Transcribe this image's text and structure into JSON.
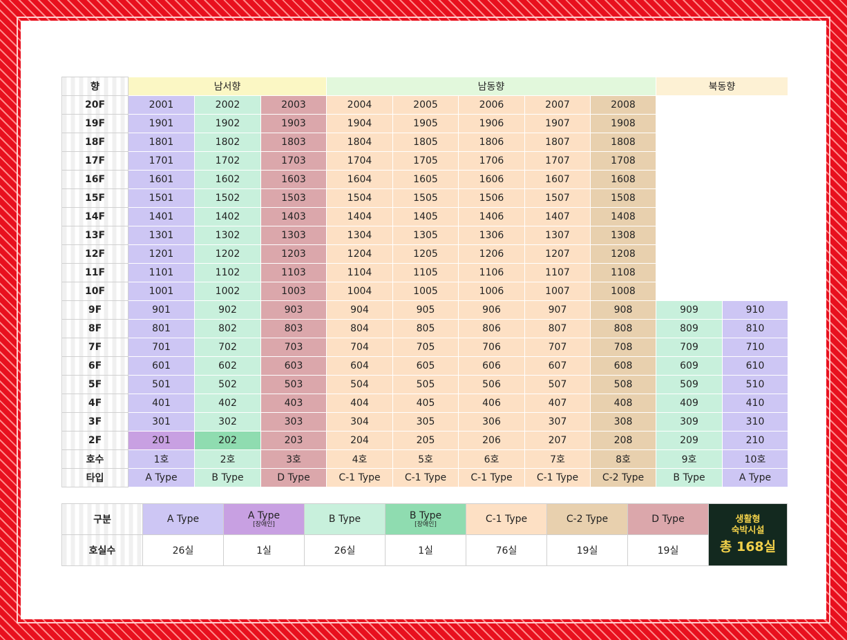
{
  "header_label": "향",
  "orientations": [
    {
      "label": "남서향",
      "span": 3,
      "style": "hSW"
    },
    {
      "label": "남동향",
      "span": 5,
      "style": "hSE"
    },
    {
      "label": "북동향",
      "span": 2,
      "style": "hNE"
    }
  ],
  "floors": [
    {
      "label": "20F",
      "units": [
        "2001",
        "2002",
        "2003",
        "2004",
        "2005",
        "2006",
        "2007",
        "2008"
      ]
    },
    {
      "label": "19F",
      "units": [
        "1901",
        "1902",
        "1903",
        "1904",
        "1905",
        "1906",
        "1907",
        "1908"
      ]
    },
    {
      "label": "18F",
      "units": [
        "1801",
        "1802",
        "1803",
        "1804",
        "1805",
        "1806",
        "1807",
        "1808"
      ]
    },
    {
      "label": "17F",
      "units": [
        "1701",
        "1702",
        "1703",
        "1704",
        "1705",
        "1706",
        "1707",
        "1708"
      ]
    },
    {
      "label": "16F",
      "units": [
        "1601",
        "1602",
        "1603",
        "1604",
        "1605",
        "1606",
        "1607",
        "1608"
      ]
    },
    {
      "label": "15F",
      "units": [
        "1501",
        "1502",
        "1503",
        "1504",
        "1505",
        "1506",
        "1507",
        "1508"
      ]
    },
    {
      "label": "14F",
      "units": [
        "1401",
        "1402",
        "1403",
        "1404",
        "1405",
        "1406",
        "1407",
        "1408"
      ]
    },
    {
      "label": "13F",
      "units": [
        "1301",
        "1302",
        "1303",
        "1304",
        "1305",
        "1306",
        "1307",
        "1308"
      ]
    },
    {
      "label": "12F",
      "units": [
        "1201",
        "1202",
        "1203",
        "1204",
        "1205",
        "1206",
        "1207",
        "1208"
      ]
    },
    {
      "label": "11F",
      "units": [
        "1101",
        "1102",
        "1103",
        "1104",
        "1105",
        "1106",
        "1107",
        "1108"
      ]
    },
    {
      "label": "10F",
      "units": [
        "1001",
        "1002",
        "1003",
        "1004",
        "1005",
        "1006",
        "1007",
        "1008"
      ]
    },
    {
      "label": "9F",
      "units": [
        "901",
        "902",
        "903",
        "904",
        "905",
        "906",
        "907",
        "908",
        "909",
        "910"
      ]
    },
    {
      "label": "8F",
      "units": [
        "801",
        "802",
        "803",
        "804",
        "805",
        "806",
        "807",
        "808",
        "809",
        "810"
      ]
    },
    {
      "label": "7F",
      "units": [
        "701",
        "702",
        "703",
        "704",
        "705",
        "706",
        "707",
        "708",
        "709",
        "710"
      ]
    },
    {
      "label": "6F",
      "units": [
        "601",
        "602",
        "603",
        "604",
        "605",
        "606",
        "607",
        "608",
        "609",
        "610"
      ]
    },
    {
      "label": "5F",
      "units": [
        "501",
        "502",
        "503",
        "504",
        "505",
        "506",
        "507",
        "508",
        "509",
        "510"
      ]
    },
    {
      "label": "4F",
      "units": [
        "401",
        "402",
        "403",
        "404",
        "405",
        "406",
        "407",
        "408",
        "409",
        "410"
      ]
    },
    {
      "label": "3F",
      "units": [
        "301",
        "302",
        "303",
        "304",
        "305",
        "306",
        "307",
        "308",
        "309",
        "310"
      ]
    },
    {
      "label": "2F",
      "units": [
        "201",
        "202",
        "203",
        "204",
        "205",
        "206",
        "207",
        "208",
        "209",
        "210"
      ]
    }
  ],
  "column_styles": [
    "cA",
    "cB",
    "cD",
    "cC1",
    "cC1",
    "cC1",
    "cC1",
    "cC2",
    "cB",
    "cA"
  ],
  "special_cells": {
    "201": "cA2",
    "202": "cB2"
  },
  "unit_row": {
    "label": "호수",
    "values": [
      "1호",
      "2호",
      "3호",
      "4호",
      "5호",
      "6호",
      "7호",
      "8호",
      "9호",
      "10호"
    ]
  },
  "type_row": {
    "label": "타입",
    "values": [
      "A Type",
      "B Type",
      "D Type",
      "C-1 Type",
      "C-1 Type",
      "C-1 Type",
      "C-1 Type",
      "C-2 Type",
      "B Type",
      "A Type"
    ]
  },
  "summary": {
    "category_label": "구분",
    "count_label": "호실수",
    "types": [
      {
        "name": "A Type",
        "sub": "",
        "count": "26실",
        "style": "cA"
      },
      {
        "name": "A Type",
        "sub": "[장애인]",
        "count": "1실",
        "style": "cA2"
      },
      {
        "name": "B Type",
        "sub": "",
        "count": "26실",
        "style": "cB"
      },
      {
        "name": "B Type",
        "sub": "[장애인]",
        "count": "1실",
        "style": "cB2"
      },
      {
        "name": "C-1 Type",
        "sub": "",
        "count": "76실",
        "style": "cC1"
      },
      {
        "name": "C-2 Type",
        "sub": "",
        "count": "19실",
        "style": "cC2"
      },
      {
        "name": "D Type",
        "sub": "",
        "count": "19실",
        "style": "cD"
      }
    ],
    "total_line1": "생활형",
    "total_line2": "숙박시설",
    "total_value": "총 168실"
  },
  "colors": {
    "frame": "#e8101e",
    "total_bg": "#13291f",
    "total_text": "#f2d14a"
  }
}
